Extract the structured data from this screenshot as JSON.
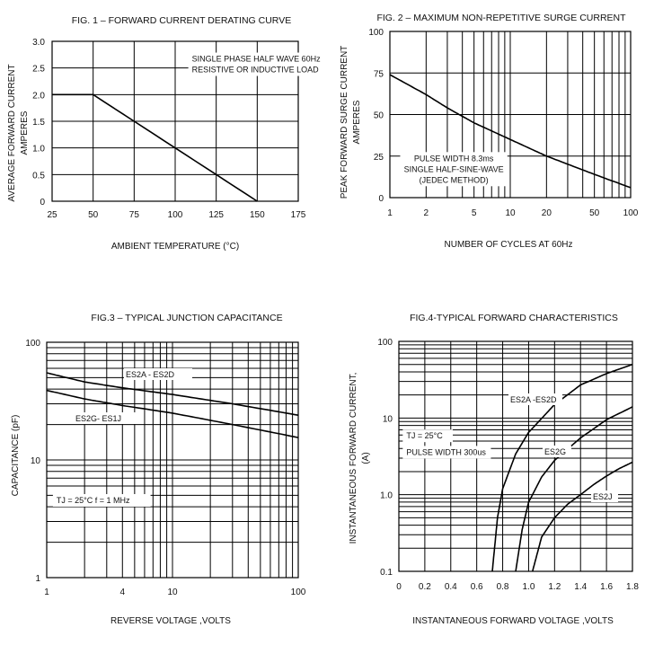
{
  "chart_data": [
    {
      "id": "fig1",
      "type": "line",
      "title": "FIG. 1 – FORWARD CURRENT DERATING CURVE",
      "xlabel": "AMBIENT TEMPERATURE  (°C)",
      "ylabel": [
        "AVERAGE FORWARD CURRENT",
        "AMPERES"
      ],
      "xscale": "linear",
      "yscale": "linear",
      "xlim": [
        25,
        175
      ],
      "ylim": [
        0,
        3.0
      ],
      "xticks": [
        25,
        50,
        75,
        100,
        125,
        150,
        175
      ],
      "xtick_labels": [
        "25",
        "50",
        "75",
        "100",
        "125",
        "150",
        "175"
      ],
      "yticks": [
        0,
        0.5,
        1.0,
        1.5,
        2.0,
        2.5,
        3.0
      ],
      "ytick_labels": [
        "0",
        "0.5",
        "1.0",
        "1.5",
        "2.0",
        "2.5",
        "3.0"
      ],
      "grid": true,
      "series": [
        {
          "x": [
            25,
            50,
            150
          ],
          "y": [
            2.0,
            2.0,
            0
          ]
        }
      ],
      "annotations": [
        {
          "lines": [
            "SINGLE PHASE HALF WAVE 60Hz",
            "RESISTIVE OR INDUCTIVE LOAD"
          ],
          "x": 108,
          "y": 2.62
        }
      ]
    },
    {
      "id": "fig2",
      "type": "line",
      "title": "FIG. 2 – MAXIMUM NON-REPETITIVE SURGE CURRENT",
      "xlabel": "NUMBER OF CYCLES AT 60Hz",
      "ylabel": [
        "PEAK FORWARD SURGE CURRENT",
        "AMPERES"
      ],
      "xscale": "log",
      "yscale": "linear",
      "xlim": [
        1,
        100
      ],
      "ylim": [
        0,
        100
      ],
      "xticks": [
        1,
        2,
        5,
        10,
        20,
        50,
        100
      ],
      "xtick_labels": [
        "1",
        "2",
        "5",
        "10",
        "20",
        "50",
        "100"
      ],
      "yticks": [
        0,
        25,
        50,
        75,
        100
      ],
      "ytick_labels": [
        "0",
        "25",
        "50",
        "75",
        "100"
      ],
      "grid": true,
      "series": [
        {
          "x": [
            1,
            2,
            3,
            5,
            10,
            20,
            50,
            100
          ],
          "y": [
            74,
            62,
            54,
            45,
            35,
            25,
            14,
            6
          ]
        }
      ],
      "annotations": [
        {
          "lines": [
            "PULSE WIDTH 8.3ms",
            "SINGLE HALF-SINE-WAVE",
            "(JEDEC METHOD)"
          ],
          "x": 1.35,
          "y": 22
        }
      ]
    },
    {
      "id": "fig3",
      "type": "line",
      "title": "FIG.3 – TYPICAL JUNCTION CAPACITANCE",
      "xlabel": "REVERSE VOLTAGE ,VOLTS",
      "ylabel": [
        "CAPACITANCE (pF)"
      ],
      "xscale": "log",
      "yscale": "log",
      "xlim": [
        1,
        100
      ],
      "ylim": [
        1,
        100
      ],
      "xticks": [
        1,
        4,
        10,
        100
      ],
      "xtick_labels": [
        "1",
        "4",
        "10",
        "100"
      ],
      "yticks": [
        1,
        10,
        100
      ],
      "ytick_labels": [
        "1",
        "10",
        "100"
      ],
      "grid": true,
      "series": [
        {
          "name": "ES2A - ES2D",
          "x": [
            1,
            2,
            4,
            10,
            30,
            100
          ],
          "y": [
            55,
            46,
            41,
            36,
            30,
            24
          ]
        },
        {
          "name": "ES2G- ES1J",
          "x": [
            1,
            2,
            4,
            10,
            30,
            100
          ],
          "y": [
            39,
            33,
            29,
            25,
            20,
            15.5
          ]
        }
      ],
      "annotations": [
        {
          "lines": [
            "TJ = 25°C f = 1 MHz"
          ],
          "x": 1.12,
          "y": 4.3
        }
      ]
    },
    {
      "id": "fig4",
      "type": "line",
      "title": "FIG.4-TYPICAL FORWARD CHARACTERISTICS",
      "xlabel": "INSTANTANEOUS FORWARD VOLTAGE ,VOLTS",
      "ylabel": [
        "INSTANTANEOUS FORWARD CURRENT,",
        "(A)"
      ],
      "xscale": "linear",
      "yscale": "log",
      "xlim": [
        0,
        1.8
      ],
      "ylim": [
        0.1,
        100
      ],
      "xticks": [
        0,
        0.2,
        0.4,
        0.6,
        0.8,
        1.0,
        1.2,
        1.4,
        1.6,
        1.8
      ],
      "xtick_labels": [
        "0",
        "0.2",
        "0.4",
        "0.6",
        "0.8",
        "1.0",
        "1.2",
        "1.4",
        "1.6",
        "1.8"
      ],
      "yticks": [
        0.1,
        1.0,
        10,
        100
      ],
      "ytick_labels": [
        "0.1",
        "1.0",
        "10",
        "100"
      ],
      "grid": true,
      "series": [
        {
          "name": "ES2A -ES2D",
          "x": [
            0.72,
            0.76,
            0.8,
            0.9,
            1.0,
            1.2,
            1.4,
            1.6,
            1.8
          ],
          "y": [
            0.1,
            0.5,
            1.2,
            3.4,
            6.5,
            15,
            27,
            38,
            50
          ]
        },
        {
          "name": "ES2G",
          "x": [
            0.9,
            0.95,
            1.0,
            1.1,
            1.2,
            1.4,
            1.6,
            1.8
          ],
          "y": [
            0.1,
            0.35,
            0.8,
            1.7,
            2.8,
            5.5,
            9.5,
            14
          ]
        },
        {
          "name": "ES2J",
          "x": [
            1.03,
            1.1,
            1.2,
            1.3,
            1.4,
            1.5,
            1.6,
            1.7,
            1.8
          ],
          "y": [
            0.1,
            0.28,
            0.5,
            0.75,
            1.0,
            1.35,
            1.75,
            2.2,
            2.65
          ]
        }
      ],
      "annotations": [
        {
          "lines": [
            "TJ = 25°C"
          ],
          "x": 0.03,
          "y": 5.4
        },
        {
          "lines": [
            "PULSE WIDTH 300us"
          ],
          "x": 0.03,
          "y": 3.3
        }
      ]
    }
  ]
}
